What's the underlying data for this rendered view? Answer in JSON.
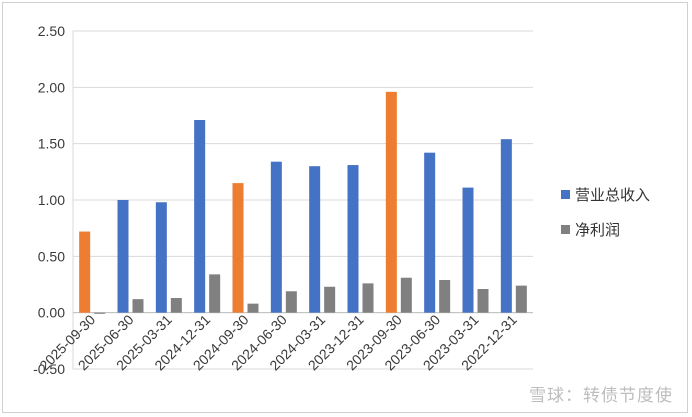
{
  "chart_data": {
    "type": "bar",
    "categories": [
      "2025-09-30",
      "2025-06-30",
      "2025-03-31",
      "2024-12-31",
      "2024-09-30",
      "2024-06-30",
      "2024-03-31",
      "2023-12-31",
      "2023-09-30",
      "2023-06-30",
      "2023-03-31",
      "2022-12-31"
    ],
    "series": [
      {
        "name": "营业总收入",
        "values": [
          0.72,
          1.0,
          0.98,
          1.71,
          1.15,
          1.34,
          1.3,
          1.31,
          1.96,
          1.42,
          1.11,
          1.54
        ]
      },
      {
        "name": "净利润",
        "values": [
          -0.01,
          0.12,
          0.13,
          0.34,
          0.08,
          0.19,
          0.23,
          0.26,
          0.31,
          0.29,
          0.21,
          0.24
        ]
      }
    ],
    "ylim": [
      -0.5,
      2.5
    ],
    "yticks": [
      "2.50",
      "2.00",
      "1.50",
      "1.00",
      "0.50",
      "0.00",
      "-0.50"
    ],
    "grid": true,
    "legend": "right",
    "colors": {
      "revenue": "#4472C4",
      "profit": "#808080",
      "highlight": "#ED7D31"
    },
    "highlight_categories": [
      0,
      4,
      8
    ]
  },
  "watermark": "雪球：转债节度使"
}
